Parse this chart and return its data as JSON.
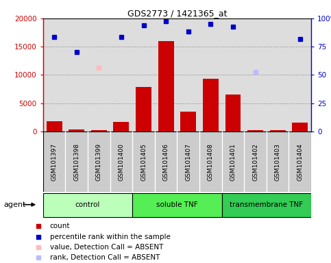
{
  "title": "GDS2773 / 1421365_at",
  "samples": [
    "GSM101397",
    "GSM101398",
    "GSM101399",
    "GSM101400",
    "GSM101405",
    "GSM101406",
    "GSM101407",
    "GSM101408",
    "GSM101401",
    "GSM101402",
    "GSM101403",
    "GSM101404"
  ],
  "groups": [
    {
      "label": "control",
      "start": 0,
      "end": 4,
      "color": "#bbffbb"
    },
    {
      "label": "soluble TNF",
      "start": 4,
      "end": 8,
      "color": "#55ee55"
    },
    {
      "label": "transmembrane TNF",
      "start": 8,
      "end": 12,
      "color": "#33cc55"
    }
  ],
  "bar_values": [
    1800,
    350,
    200,
    1750,
    7900,
    16000,
    3500,
    9300,
    6500,
    250,
    200,
    1600
  ],
  "blue_dots": [
    16700,
    14000,
    null,
    16700,
    18800,
    19500,
    17700,
    19000,
    18500,
    null,
    null,
    16400
  ],
  "pink_dots": [
    null,
    null,
    11300,
    null,
    null,
    null,
    null,
    null,
    null,
    null,
    null,
    null
  ],
  "lavender_dots": [
    null,
    null,
    null,
    null,
    null,
    null,
    null,
    null,
    null,
    10500,
    null,
    null
  ],
  "ylim_left": [
    0,
    20000
  ],
  "yticks_left": [
    0,
    5000,
    10000,
    15000,
    20000
  ],
  "yticks_right": [
    0,
    25,
    50,
    75,
    100
  ],
  "bar_color": "#cc0000",
  "dot_color": "#0000cc",
  "pink_color": "#ffbbbb",
  "lavender_color": "#bbbbff",
  "sample_bg_color": "#cccccc",
  "plot_bg_color": "#dddddd",
  "legend_items": [
    {
      "color": "#cc0000",
      "label": "count"
    },
    {
      "color": "#0000cc",
      "label": "percentile rank within the sample"
    },
    {
      "color": "#ffbbbb",
      "label": "value, Detection Call = ABSENT"
    },
    {
      "color": "#bbbbff",
      "label": "rank, Detection Call = ABSENT"
    }
  ]
}
